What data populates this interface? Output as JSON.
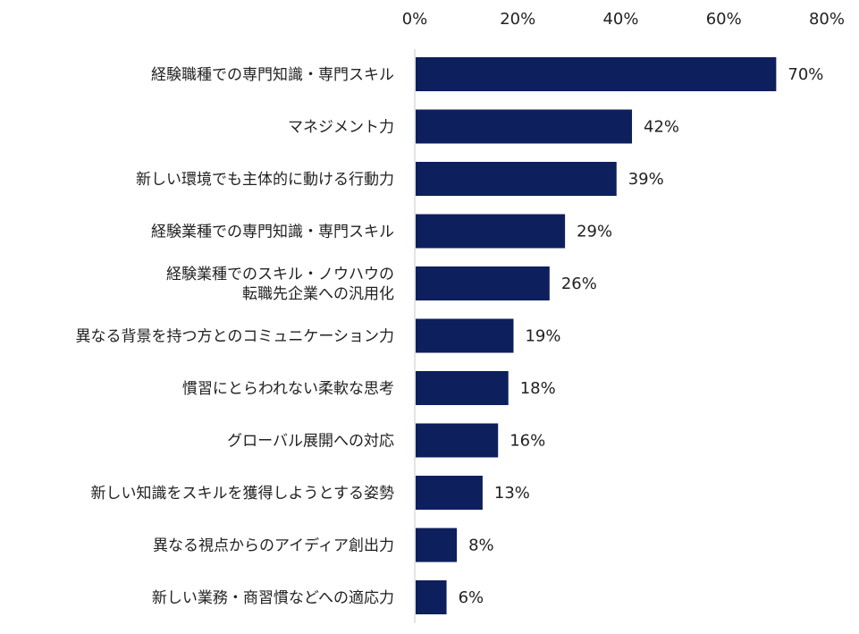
{
  "chart_data": {
    "type": "bar",
    "orientation": "horizontal",
    "categories": [
      "経験職種での専門知識・専門スキル",
      "マネジメント力",
      "新しい環境でも主体的に動ける行動力",
      "経験業種での専門知識・専門スキル",
      "経験業種でのスキル・ノウハウの\n転職先企業への汎用化",
      "異なる背景を持つ方とのコミュニケーション力",
      "慣習にとらわれない柔軟な思考",
      "グローバル展開への対応",
      "新しい知識をスキルを獲得しようとする姿勢",
      "異なる視点からのアイディア創出力",
      "新しい業務・商習慣などへの適応力"
    ],
    "values": [
      70,
      42,
      39,
      29,
      26,
      19,
      18,
      16,
      13,
      8,
      6
    ],
    "data_labels": [
      "70%",
      "42%",
      "39%",
      "29%",
      "26%",
      "19%",
      "18%",
      "16%",
      "13%",
      "8%",
      "6%"
    ],
    "xlim": [
      0,
      80
    ],
    "x_ticks": [
      "0%",
      "20%",
      "40%",
      "60%",
      "80%"
    ],
    "x_axis_position": "top",
    "bar_color": "#0d1f5c",
    "grid": false,
    "legend": "none",
    "title": "",
    "xlabel": "",
    "ylabel": ""
  }
}
